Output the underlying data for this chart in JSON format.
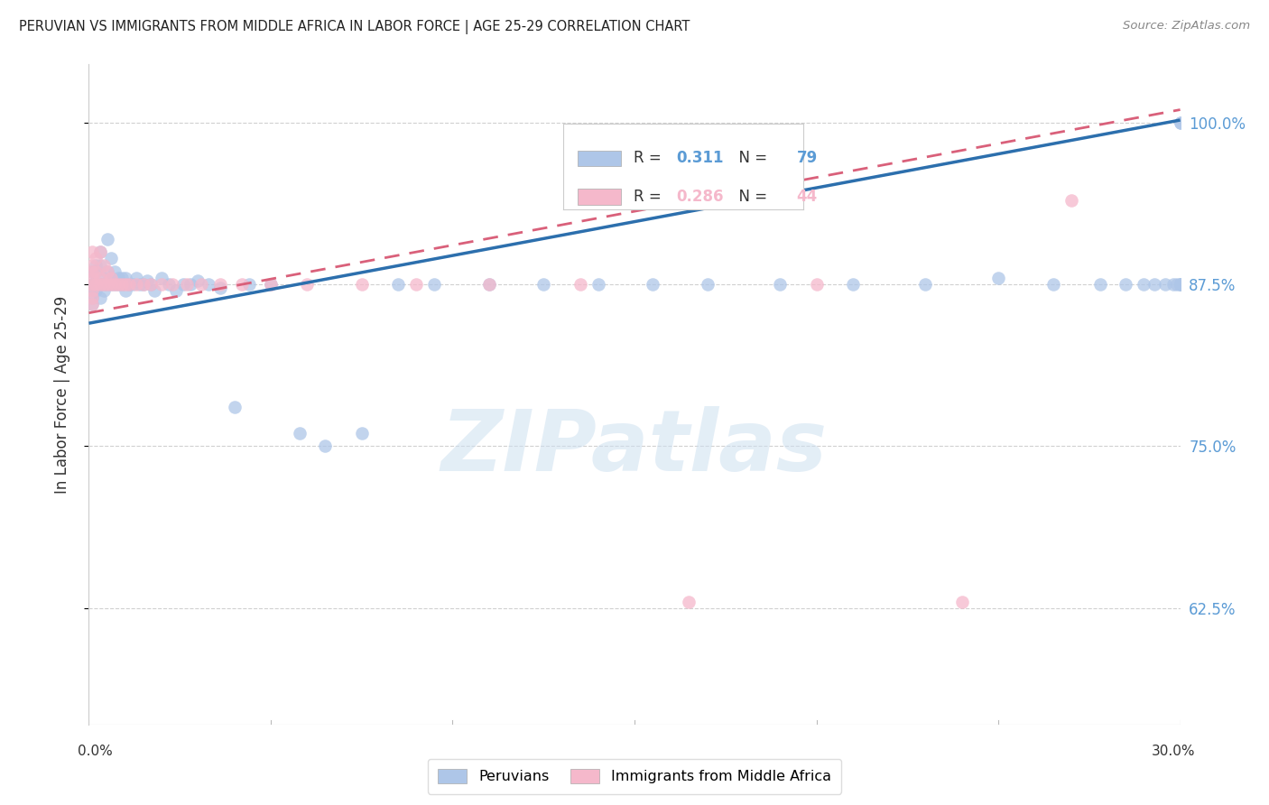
{
  "title": "PERUVIAN VS IMMIGRANTS FROM MIDDLE AFRICA IN LABOR FORCE | AGE 25-29 CORRELATION CHART",
  "source": "Source: ZipAtlas.com",
  "ylabel": "In Labor Force | Age 25-29",
  "ytick_vals": [
    0.625,
    0.75,
    0.875,
    1.0
  ],
  "ytick_labels": [
    "62.5%",
    "75.0%",
    "87.5%",
    "100.0%"
  ],
  "xmin": 0.0,
  "xmax": 0.3,
  "ymin": 0.535,
  "ymax": 1.045,
  "blue_R": 0.311,
  "blue_N": 79,
  "pink_R": 0.286,
  "pink_N": 44,
  "blue_color": "#aec6e8",
  "pink_color": "#f5b8cb",
  "blue_line_color": "#2c6fad",
  "pink_line_color": "#d9607a",
  "grid_color": "#d0d0d0",
  "right_label_color": "#5b9bd5",
  "legend_label_blue": "Peruvians",
  "legend_label_pink": "Immigrants from Middle Africa",
  "blue_line_y0": 0.845,
  "blue_line_y1": 1.002,
  "pink_line_y0": 0.853,
  "pink_line_y1": 1.01,
  "watermark": "ZIPatlas",
  "blue_x": [
    0.001,
    0.001,
    0.001,
    0.001,
    0.001,
    0.001,
    0.001,
    0.002,
    0.002,
    0.002,
    0.002,
    0.002,
    0.003,
    0.003,
    0.003,
    0.003,
    0.004,
    0.004,
    0.004,
    0.005,
    0.005,
    0.005,
    0.006,
    0.006,
    0.006,
    0.007,
    0.007,
    0.008,
    0.008,
    0.009,
    0.009,
    0.01,
    0.01,
    0.011,
    0.012,
    0.013,
    0.014,
    0.015,
    0.016,
    0.017,
    0.018,
    0.02,
    0.022,
    0.024,
    0.026,
    0.028,
    0.03,
    0.033,
    0.036,
    0.04,
    0.044,
    0.05,
    0.058,
    0.065,
    0.075,
    0.085,
    0.095,
    0.11,
    0.125,
    0.14,
    0.155,
    0.17,
    0.19,
    0.21,
    0.23,
    0.25,
    0.265,
    0.278,
    0.285,
    0.29,
    0.293,
    0.296,
    0.298,
    0.299,
    0.3,
    0.3,
    0.3,
    0.3,
    0.3
  ],
  "blue_y": [
    0.885,
    0.875,
    0.875,
    0.87,
    0.865,
    0.86,
    0.875,
    0.89,
    0.885,
    0.875,
    0.875,
    0.87,
    0.9,
    0.89,
    0.875,
    0.865,
    0.88,
    0.875,
    0.87,
    0.91,
    0.885,
    0.875,
    0.895,
    0.88,
    0.875,
    0.885,
    0.875,
    0.88,
    0.875,
    0.88,
    0.875,
    0.88,
    0.87,
    0.875,
    0.875,
    0.88,
    0.875,
    0.875,
    0.878,
    0.875,
    0.87,
    0.88,
    0.875,
    0.87,
    0.875,
    0.875,
    0.878,
    0.875,
    0.872,
    0.78,
    0.875,
    0.875,
    0.76,
    0.75,
    0.76,
    0.875,
    0.875,
    0.875,
    0.875,
    0.875,
    0.875,
    0.875,
    0.875,
    0.875,
    0.875,
    0.88,
    0.875,
    0.875,
    0.875,
    0.875,
    0.875,
    0.875,
    0.875,
    0.875,
    0.875,
    0.875,
    0.875,
    1.0,
    1.0
  ],
  "pink_x": [
    0.001,
    0.001,
    0.001,
    0.001,
    0.001,
    0.001,
    0.001,
    0.001,
    0.002,
    0.002,
    0.002,
    0.003,
    0.003,
    0.003,
    0.004,
    0.004,
    0.005,
    0.005,
    0.006,
    0.006,
    0.007,
    0.008,
    0.009,
    0.01,
    0.011,
    0.013,
    0.015,
    0.017,
    0.02,
    0.023,
    0.027,
    0.031,
    0.036,
    0.042,
    0.05,
    0.06,
    0.075,
    0.09,
    0.11,
    0.135,
    0.165,
    0.2,
    0.24,
    0.27
  ],
  "pink_y": [
    0.9,
    0.89,
    0.885,
    0.88,
    0.875,
    0.87,
    0.865,
    0.86,
    0.895,
    0.885,
    0.875,
    0.9,
    0.88,
    0.875,
    0.89,
    0.875,
    0.885,
    0.875,
    0.88,
    0.875,
    0.875,
    0.875,
    0.875,
    0.875,
    0.875,
    0.875,
    0.875,
    0.875,
    0.875,
    0.875,
    0.875,
    0.875,
    0.875,
    0.875,
    0.875,
    0.875,
    0.875,
    0.875,
    0.875,
    0.875,
    0.63,
    0.875,
    0.63,
    0.94
  ]
}
